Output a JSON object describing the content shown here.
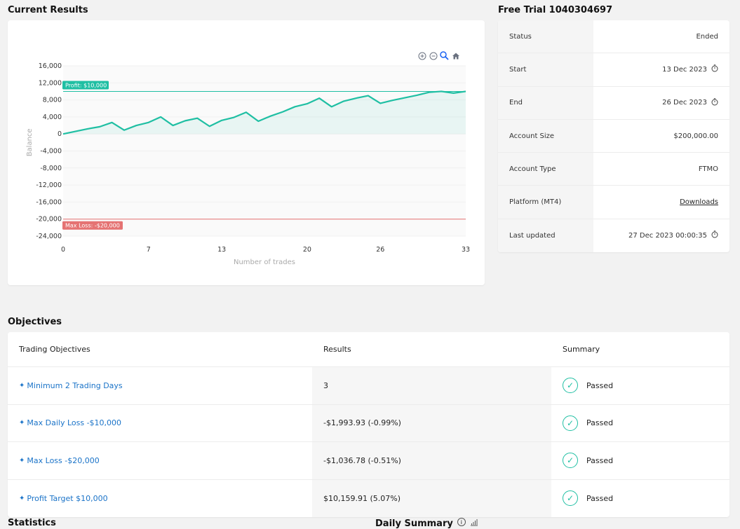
{
  "current_results": {
    "title": "Current Results"
  },
  "trial": {
    "title": "Free Trial 1040304697",
    "rows": [
      {
        "label": "Status",
        "value": "Ended",
        "clock": false
      },
      {
        "label": "Start",
        "value": "13 Dec 2023",
        "clock": true
      },
      {
        "label": "End",
        "value": "26 Dec 2023",
        "clock": true
      },
      {
        "label": "Account Size",
        "value": "$200,000.00",
        "clock": false
      },
      {
        "label": "Account Type",
        "value": "FTMO",
        "clock": false
      },
      {
        "label": "Platform (MT4)",
        "value": "Downloads",
        "link": true,
        "clock": false
      },
      {
        "label": "Last updated",
        "value": "27 Dec 2023 00:00:35",
        "clock": true
      }
    ]
  },
  "objectives": {
    "title": "Objectives",
    "headers": {
      "col1": "Trading Objectives",
      "col2": "Results",
      "col3": "Summary"
    },
    "rows": [
      {
        "name": "Minimum 2 Trading Days",
        "result": "3",
        "summary": "Passed"
      },
      {
        "name": "Max Daily Loss -$10,000",
        "result": "-$1,993.93 (-0.99%)",
        "summary": "Passed"
      },
      {
        "name": "Max Loss -$20,000",
        "result": "-$1,036.78 (-0.51%)",
        "summary": "Passed"
      },
      {
        "name": "Profit Target $10,000",
        "result": "$10,159.91 (5.07%)",
        "summary": "Passed"
      }
    ]
  },
  "bottom": {
    "statistics": "Statistics",
    "daily_summary": "Daily Summary"
  },
  "colors": {
    "line": "#1fbfa3",
    "profit": "#1fbfa3",
    "loss": "#e57373",
    "link": "#1a73c8"
  },
  "chart_data": {
    "type": "line",
    "xlabel": "Number of trades",
    "ylabel": "Balance",
    "xlim": [
      0,
      33
    ],
    "ylim": [
      -24000,
      16000
    ],
    "x_ticks": [
      0,
      7,
      13,
      20,
      26,
      33
    ],
    "y_ticks": [
      16000,
      12000,
      8000,
      4000,
      0,
      -4000,
      -8000,
      -12000,
      -16000,
      -20000,
      -24000
    ],
    "y_tick_labels": [
      "16,000",
      "12,000",
      "8,000",
      "4,000",
      "0",
      "-4,000",
      "-8,000",
      "-12,000",
      "-16,000",
      "-20,000",
      "-24,000"
    ],
    "annotations": [
      {
        "label": "Profit: $10,000",
        "y": 10000,
        "color": "#1fbfa3"
      },
      {
        "label": "Max Loss: -$20,000",
        "y": -20000,
        "color": "#e57373"
      }
    ],
    "series": [
      {
        "values": [
          [
            0,
            0
          ],
          [
            1,
            600
          ],
          [
            2,
            1200
          ],
          [
            3,
            1700
          ],
          [
            4,
            2700
          ],
          [
            5,
            900
          ],
          [
            6,
            2000
          ],
          [
            7,
            2700
          ],
          [
            8,
            4000
          ],
          [
            9,
            2000
          ],
          [
            10,
            3100
          ],
          [
            11,
            3700
          ],
          [
            12,
            1800
          ],
          [
            13,
            3200
          ],
          [
            14,
            3900
          ],
          [
            15,
            5100
          ],
          [
            16,
            3000
          ],
          [
            17,
            4200
          ],
          [
            18,
            5200
          ],
          [
            19,
            6400
          ],
          [
            20,
            7100
          ],
          [
            21,
            8400
          ],
          [
            22,
            6400
          ],
          [
            23,
            7700
          ],
          [
            24,
            8400
          ],
          [
            25,
            9000
          ],
          [
            26,
            7200
          ],
          [
            27,
            7900
          ],
          [
            28,
            8500
          ],
          [
            29,
            9100
          ],
          [
            30,
            9800
          ],
          [
            31,
            10000
          ],
          [
            32,
            9600
          ],
          [
            33,
            10000
          ]
        ]
      }
    ]
  }
}
